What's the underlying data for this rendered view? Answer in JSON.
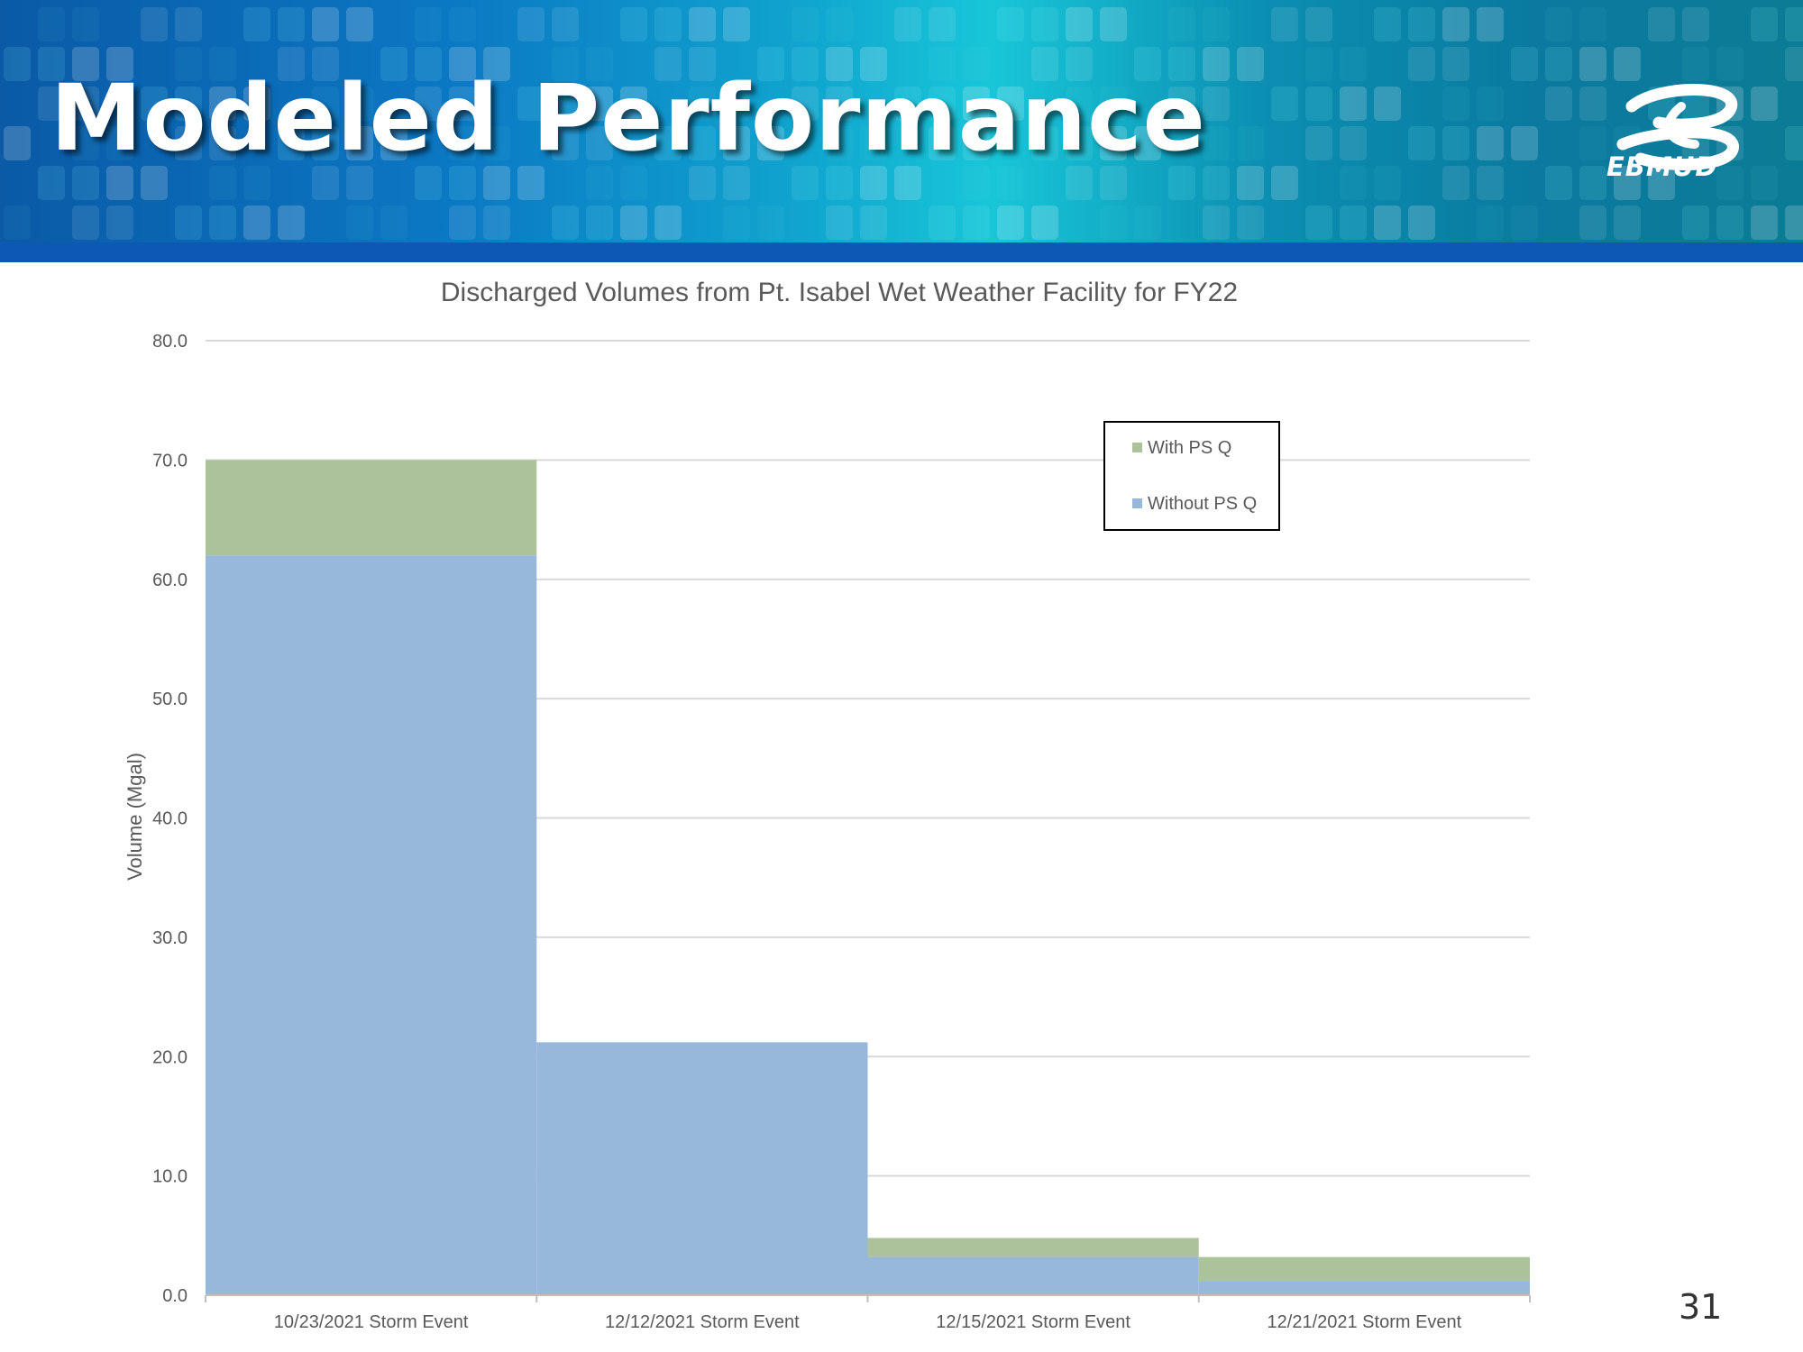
{
  "header": {
    "title": "Modeled Performance",
    "logo_text": "EBMUD",
    "logo_icon": "ebmud-logo-icon"
  },
  "colors": {
    "with_ps_q": "#abc29b",
    "without_ps_q": "#97b8da",
    "banner_stripe": "#0d58b3"
  },
  "page_number": "31",
  "chart_data": {
    "type": "bar",
    "stacked": true,
    "title": "Discharged Volumes from Pt. Isabel Wet Weather Facility for FY22",
    "xlabel": "",
    "ylabel": "Volume (Mgal)",
    "ylim": [
      0,
      80
    ],
    "yticks": [
      "0.0",
      "10.0",
      "20.0",
      "30.0",
      "40.0",
      "50.0",
      "60.0",
      "70.0",
      "80.0"
    ],
    "grid": true,
    "legend_position": "top-right",
    "categories": [
      "10/23/2021 Storm Event",
      "12/12/2021 Storm Event",
      "12/15/2021 Storm Event",
      "12/21/2021 Storm Event"
    ],
    "series": [
      {
        "name": "Without PS Q",
        "values": [
          62.0,
          21.2,
          3.2,
          1.2
        ]
      },
      {
        "name": "With PS Q",
        "values": [
          8.0,
          0.0,
          1.6,
          2.0
        ]
      }
    ],
    "legend": [
      "With PS Q",
      "Without PS Q"
    ]
  }
}
